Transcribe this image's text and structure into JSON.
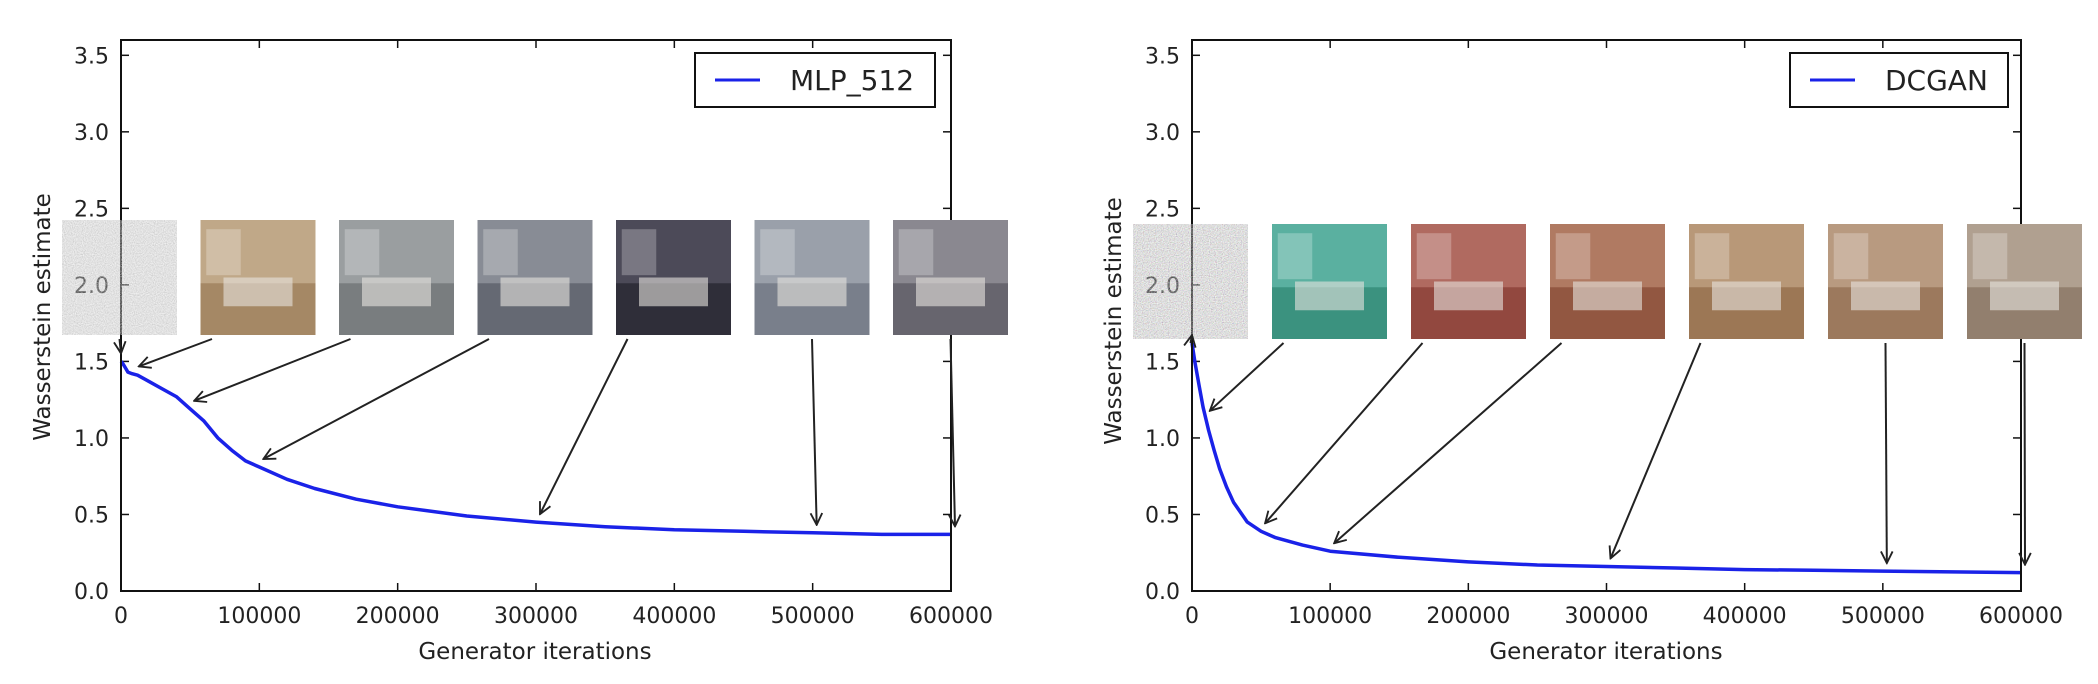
{
  "chart_data": [
    {
      "type": "line",
      "xlabel": "Generator iterations",
      "ylabel": "Wasserstein estimate",
      "xlim": [
        0,
        600000
      ],
      "ylim": [
        0,
        3.6
      ],
      "xticks": [
        0,
        100000,
        200000,
        300000,
        400000,
        500000,
        600000
      ],
      "xtick_labels": [
        "0",
        "100000",
        "200000",
        "300000",
        "400000",
        "500000",
        "600000"
      ],
      "yticks": [
        0.0,
        0.5,
        1.0,
        1.5,
        2.0,
        2.5,
        3.0,
        3.5
      ],
      "ytick_labels": [
        "0.0",
        "0.5",
        "1.0",
        "1.5",
        "2.0",
        "2.5",
        "3.0",
        "3.5"
      ],
      "legend": "top-right",
      "grid": false,
      "series": [
        {
          "name": "MLP_512",
          "color": "#1a22e8",
          "x": [
            0,
            1000,
            3000,
            5000,
            8000,
            12000,
            20000,
            30000,
            40000,
            50000,
            60000,
            70000,
            80000,
            90000,
            100000,
            120000,
            140000,
            170000,
            200000,
            250000,
            300000,
            350000,
            400000,
            450000,
            500000,
            550000,
            600000
          ],
          "y": [
            1.5,
            1.49,
            1.46,
            1.43,
            1.42,
            1.41,
            1.37,
            1.32,
            1.27,
            1.19,
            1.11,
            1.0,
            0.92,
            0.85,
            0.81,
            0.73,
            0.67,
            0.6,
            0.55,
            0.49,
            0.45,
            0.42,
            0.4,
            0.39,
            0.38,
            0.37,
            0.37
          ]
        }
      ],
      "annotations_x": [
        0,
        10000,
        50000,
        100000,
        300000,
        500000,
        600000
      ]
    },
    {
      "type": "line",
      "xlabel": "Generator iterations",
      "ylabel": "Wasserstein estimate",
      "xlim": [
        0,
        600000
      ],
      "ylim": [
        0,
        3.6
      ],
      "xticks": [
        0,
        100000,
        200000,
        300000,
        400000,
        500000,
        600000
      ],
      "xtick_labels": [
        "0",
        "100000",
        "200000",
        "300000",
        "400000",
        "500000",
        "600000"
      ],
      "yticks": [
        0.0,
        0.5,
        1.0,
        1.5,
        2.0,
        2.5,
        3.0,
        3.5
      ],
      "ytick_labels": [
        "0.0",
        "0.5",
        "1.0",
        "1.5",
        "2.0",
        "2.5",
        "3.0",
        "3.5"
      ],
      "legend": "top-right",
      "grid": false,
      "series": [
        {
          "name": "DCGAN",
          "color": "#1a22e8",
          "x": [
            0,
            2000,
            5000,
            8000,
            12000,
            16000,
            20000,
            25000,
            30000,
            40000,
            50000,
            60000,
            80000,
            100000,
            150000,
            200000,
            250000,
            300000,
            350000,
            400000,
            450000,
            500000,
            550000,
            600000
          ],
          "y": [
            1.62,
            1.5,
            1.35,
            1.2,
            1.05,
            0.92,
            0.8,
            0.68,
            0.58,
            0.45,
            0.39,
            0.35,
            0.3,
            0.26,
            0.22,
            0.19,
            0.17,
            0.16,
            0.15,
            0.14,
            0.135,
            0.13,
            0.125,
            0.12
          ]
        }
      ],
      "annotations_x": [
        0,
        10000,
        50000,
        100000,
        300000,
        500000,
        600000
      ]
    }
  ],
  "thumbnails": [
    [
      "#8a8a8a",
      "#c0a888",
      "#9a9ea0",
      "#888c95",
      "#4c4a58",
      "#9aa0aa",
      "#8a8890"
    ],
    [
      "#8a7f8a",
      "#5ab0a0",
      "#b06a60",
      "#b07a62",
      "#b89878",
      "#b89a80",
      "#b0a090"
    ]
  ]
}
